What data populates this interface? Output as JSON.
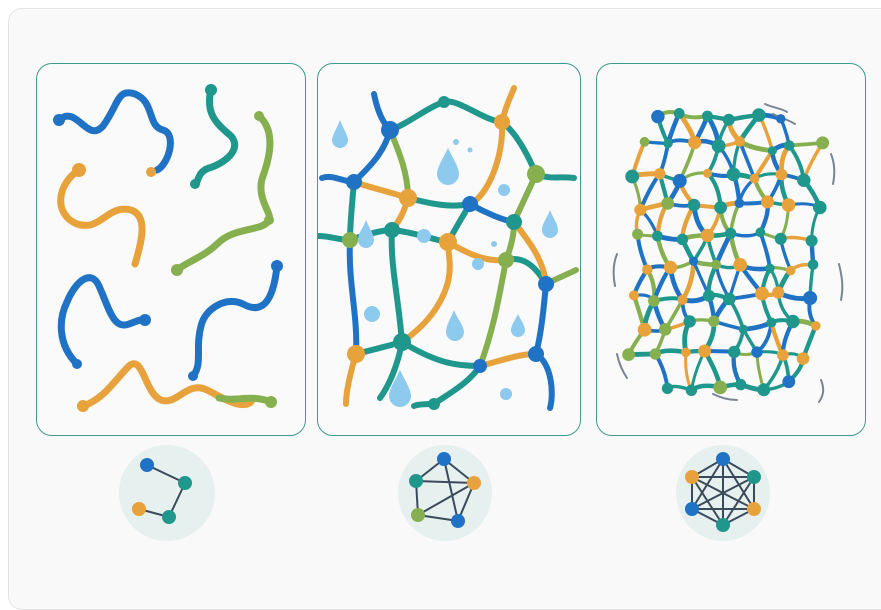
{
  "diagram": {
    "panels": [
      {
        "name": "separate-polymer-chains",
        "stage": 1
      },
      {
        "name": "swollen-network-with-water",
        "stage": 2
      },
      {
        "name": "dense-crosslinked-network",
        "stage": 3
      }
    ],
    "badges": [
      {
        "name": "sparse-graph-icon",
        "nodes": 4
      },
      {
        "name": "medium-graph-icon",
        "nodes": 5
      },
      {
        "name": "dense-graph-icon",
        "nodes": 6
      }
    ],
    "colors": {
      "blue": "#1f72c4",
      "teal": "#1f978c",
      "orange": "#e8a23c",
      "green": "#86b04f",
      "water": "#8ec9ee",
      "border": "#3f9a8a",
      "badge_bg": "#e6f0ee",
      "edge": "#3a4a5c"
    }
  }
}
